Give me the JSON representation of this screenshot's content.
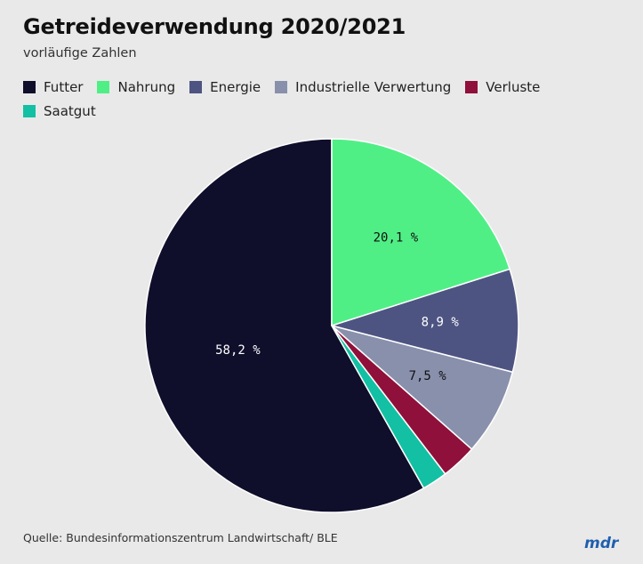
{
  "header": {
    "title": "Getreideverwendung 2020/2021",
    "subtitle": "vorläufige Zahlen"
  },
  "chart_data": {
    "type": "pie",
    "title": "Getreideverwendung 2020/2021",
    "subtitle": "vorläufige Zahlen",
    "legend_position": "top-left",
    "start_angle_deg": -90,
    "direction": "counterclockwise",
    "slices": [
      {
        "name": "Futter",
        "value": 58.2,
        "label": "58,2 %",
        "color": "#0f0e2b",
        "label_color": "#ffffff"
      },
      {
        "name": "Saatgut",
        "value": 2.2,
        "label": "",
        "color": "#13c0a3",
        "label_color": "#000000"
      },
      {
        "name": "Verluste",
        "value": 3.1,
        "label": "",
        "color": "#8f103a",
        "label_color": "#ffffff"
      },
      {
        "name": "Industrielle Verwertung",
        "value": 7.5,
        "label": "7,5 %",
        "color": "#8890ac",
        "label_color": "#111111"
      },
      {
        "name": "Energie",
        "value": 8.9,
        "label": "8,9 %",
        "color": "#4e5482",
        "label_color": "#ffffff"
      },
      {
        "name": "Nahrung",
        "value": 20.1,
        "label": "20,1 %",
        "color": "#50ef86",
        "label_color": "#111111"
      }
    ],
    "legend_order": [
      "Futter",
      "Nahrung",
      "Energie",
      "Industrielle Verwertung",
      "Verluste",
      "Saatgut"
    ]
  },
  "footer": {
    "source": "Quelle: Bundesinformationszentrum Landwirtschaft/ BLE",
    "logo_text": "mdr",
    "logo_color": "#1f5fae"
  }
}
